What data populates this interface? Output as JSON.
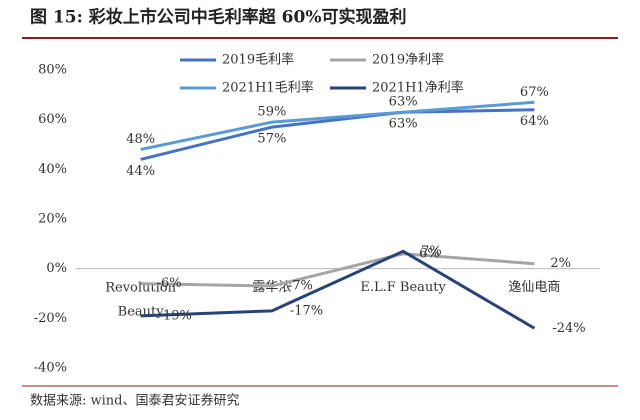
{
  "chart_data": {
    "type": "line",
    "title": "图 15:  彩妆上市公司中毛利率超 60%可实现盈利",
    "source": "数据来源: wind、国泰君安证券研究",
    "categories": [
      "Revolution Beauty",
      "露华浓",
      "E.L.F Beauty",
      "逸仙电商"
    ],
    "series": [
      {
        "name": "2019毛利率",
        "color": "#4472c4",
        "values": [
          44,
          57,
          63,
          64
        ],
        "value_labels": [
          "44%",
          "57%",
          "63%",
          "64%"
        ]
      },
      {
        "name": "2019净利率",
        "color": "#a5a5a5",
        "values": [
          -6,
          -7,
          6,
          2
        ],
        "value_labels": [
          "-6%",
          "-7%",
          "6%",
          "2%"
        ]
      },
      {
        "name": "2021H1毛利率",
        "color": "#5b9bd5",
        "values": [
          48,
          59,
          63,
          67
        ],
        "value_labels": [
          "48%",
          "59%",
          "63%",
          "67%"
        ]
      },
      {
        "name": "2021H1净利率",
        "color": "#264478",
        "values": [
          -19,
          -17,
          7,
          -24
        ],
        "value_labels": [
          "-19%",
          "-17%",
          "7%",
          "-24%"
        ]
      }
    ],
    "ylim": [
      -40,
      80
    ],
    "yticks": [
      {
        "value": -40,
        "label": "-40%"
      },
      {
        "value": -20,
        "label": "-20%"
      },
      {
        "value": 0,
        "label": "0%"
      },
      {
        "value": 20,
        "label": "20%"
      },
      {
        "value": 40,
        "label": "40%"
      },
      {
        "value": 60,
        "label": "60%"
      },
      {
        "value": 80,
        "label": "80%"
      }
    ],
    "grid": false
  }
}
